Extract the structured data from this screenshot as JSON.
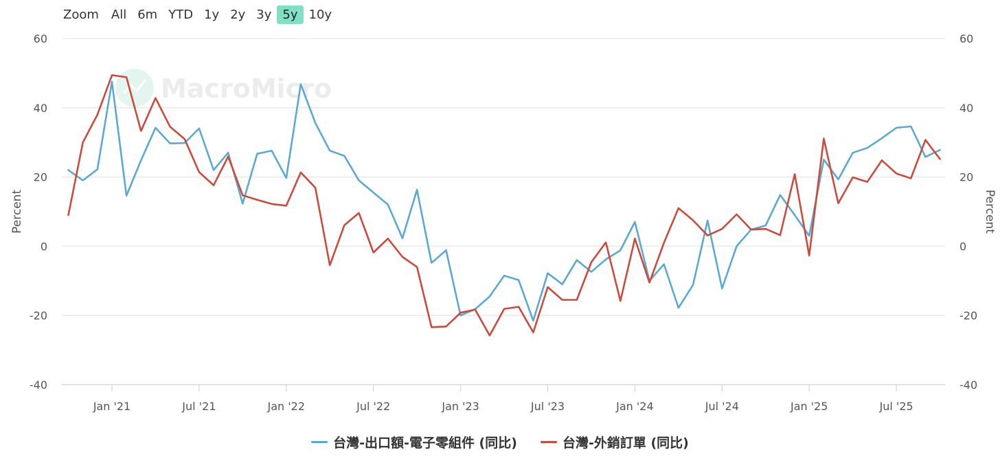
{
  "toolbar": {
    "zoom_label": "Zoom",
    "buttons": [
      "All",
      "6m",
      "YTD",
      "1y",
      "2y",
      "3y",
      "5y",
      "10y"
    ],
    "active": "5y",
    "active_color": "#7fe0c4"
  },
  "watermark": "MacroMicro",
  "chart_data": {
    "type": "line",
    "ylabel_left": "Percent",
    "ylabel_right": "Percent",
    "ylim": [
      -40,
      60
    ],
    "yticks": [
      "60",
      "40",
      "20",
      "0",
      "-20",
      "-40"
    ],
    "xticks": [
      "Jan '21",
      "Jul '21",
      "Jan '22",
      "Jul '22",
      "Jan '23",
      "Jul '23",
      "Jan '24",
      "Jul '24",
      "Jan '25",
      "Jul '25"
    ],
    "x": [
      "2020-10",
      "2020-11",
      "2020-12",
      "2021-01",
      "2021-02",
      "2021-03",
      "2021-04",
      "2021-05",
      "2021-06",
      "2021-07",
      "2021-08",
      "2021-09",
      "2021-10",
      "2021-11",
      "2021-12",
      "2022-01",
      "2022-02",
      "2022-03",
      "2022-04",
      "2022-05",
      "2022-06",
      "2022-07",
      "2022-08",
      "2022-09",
      "2022-10",
      "2022-11",
      "2022-12",
      "2023-01",
      "2023-02",
      "2023-03",
      "2023-04",
      "2023-05",
      "2023-06",
      "2023-07",
      "2023-08",
      "2023-09",
      "2023-10",
      "2023-11",
      "2023-12",
      "2024-01",
      "2024-02",
      "2024-03",
      "2024-04",
      "2024-05",
      "2024-06",
      "2024-07",
      "2024-08",
      "2024-09",
      "2024-10",
      "2024-11",
      "2024-12",
      "2025-01",
      "2025-02",
      "2025-03",
      "2025-04",
      "2025-05",
      "2025-06",
      "2025-07",
      "2025-08",
      "2025-09",
      "2025-10"
    ],
    "grid": true,
    "legend_position": "bottom-center",
    "series": [
      {
        "name": "台灣-出口額-電子零組件 (同比)",
        "color": "#5aa9d4",
        "values": [
          22.0,
          19.0,
          22.2,
          47.5,
          14.6,
          24.8,
          34.2,
          29.7,
          29.8,
          34.0,
          22.0,
          27.0,
          12.3,
          26.7,
          27.6,
          19.7,
          46.8,
          35.6,
          27.6,
          26.1,
          19.0,
          15.5,
          12.0,
          2.3,
          16.3,
          -4.8,
          -1.2,
          -20.0,
          -18.2,
          -14.5,
          -8.5,
          -9.8,
          -21.5,
          -7.8,
          -11.0,
          -4.0,
          -7.4,
          -3.8,
          -1.2,
          7.0,
          -10.0,
          -5.2,
          -17.8,
          -11.2,
          7.4,
          -12.2,
          0.0,
          4.8,
          6.0,
          14.8,
          9.0,
          3.0,
          25.0,
          19.3,
          27.0,
          28.4,
          31.2,
          34.2,
          34.6,
          25.8,
          27.8
        ]
      },
      {
        "name": "台灣-外銷訂單 (同比)",
        "color": "#cc4a3c",
        "values": [
          9.0,
          30.0,
          38.0,
          49.4,
          48.8,
          33.3,
          42.8,
          34.5,
          31.0,
          21.4,
          17.6,
          25.9,
          14.7,
          13.4,
          12.2,
          11.7,
          21.3,
          16.9,
          -5.5,
          6.1,
          9.6,
          -1.8,
          2.2,
          -3.1,
          -6.0,
          -23.4,
          -23.2,
          -19.2,
          -18.3,
          -25.8,
          -18.1,
          -17.5,
          -24.9,
          -11.8,
          -15.5,
          -15.5,
          -4.6,
          1.1,
          -15.8,
          2.2,
          -10.5,
          1.0,
          11.0,
          7.5,
          3.1,
          5.0,
          9.2,
          4.8,
          5.0,
          3.2,
          20.8,
          -2.7,
          31.1,
          12.4,
          19.9,
          18.6,
          24.8,
          21.0,
          19.6,
          30.7,
          25.2
        ]
      }
    ]
  }
}
